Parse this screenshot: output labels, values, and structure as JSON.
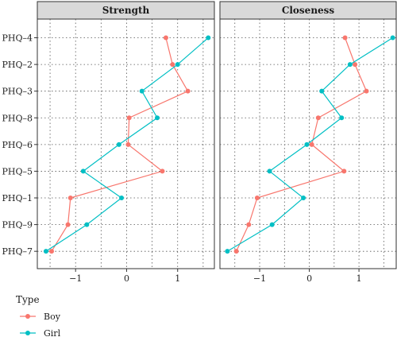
{
  "chart_data": {
    "type": "line",
    "categories": [
      "PHQ–4",
      "PHQ–2",
      "PHQ–3",
      "PHQ–8",
      "PHQ–6",
      "PHQ–5",
      "PHQ–1",
      "PHQ–9",
      "PHQ–7"
    ],
    "panels": [
      {
        "title": "Strength",
        "xlim": [
          -1.75,
          1.72
        ],
        "ticks": [
          -1,
          0,
          1
        ],
        "tick_labels": [
          "−1",
          "0",
          "1"
        ],
        "series": [
          {
            "name": "Boy",
            "values": [
              0.77,
              0.9,
              1.2,
              0.05,
              0.03,
              0.7,
              -1.1,
              -1.15,
              -1.47
            ]
          },
          {
            "name": "Girl",
            "values": [
              1.6,
              1.0,
              0.3,
              0.6,
              -0.15,
              -0.85,
              -0.1,
              -0.78,
              -1.58
            ]
          }
        ]
      },
      {
        "title": "Closeness",
        "xlim": [
          -1.8,
          1.75
        ],
        "ticks": [
          -1,
          0,
          1
        ],
        "tick_labels": [
          "−1",
          "0",
          "1"
        ],
        "series": [
          {
            "name": "Boy",
            "values": [
              0.72,
              0.92,
              1.15,
              0.18,
              0.05,
              0.7,
              -1.05,
              -1.22,
              -1.47
            ]
          },
          {
            "name": "Girl",
            "values": [
              1.68,
              0.82,
              0.25,
              0.65,
              -0.05,
              -0.8,
              -0.12,
              -0.75,
              -1.65
            ]
          }
        ]
      }
    ],
    "legend": {
      "title": "Type",
      "position": "bottom-left",
      "entries": [
        {
          "label": "Boy",
          "color": "#F8766D"
        },
        {
          "label": "Girl",
          "color": "#00BFC4"
        }
      ]
    },
    "grid": "dotted",
    "colors": {
      "Boy": "#F8766D",
      "Girl": "#00BFC4",
      "strip": "#d9d9d9"
    }
  }
}
